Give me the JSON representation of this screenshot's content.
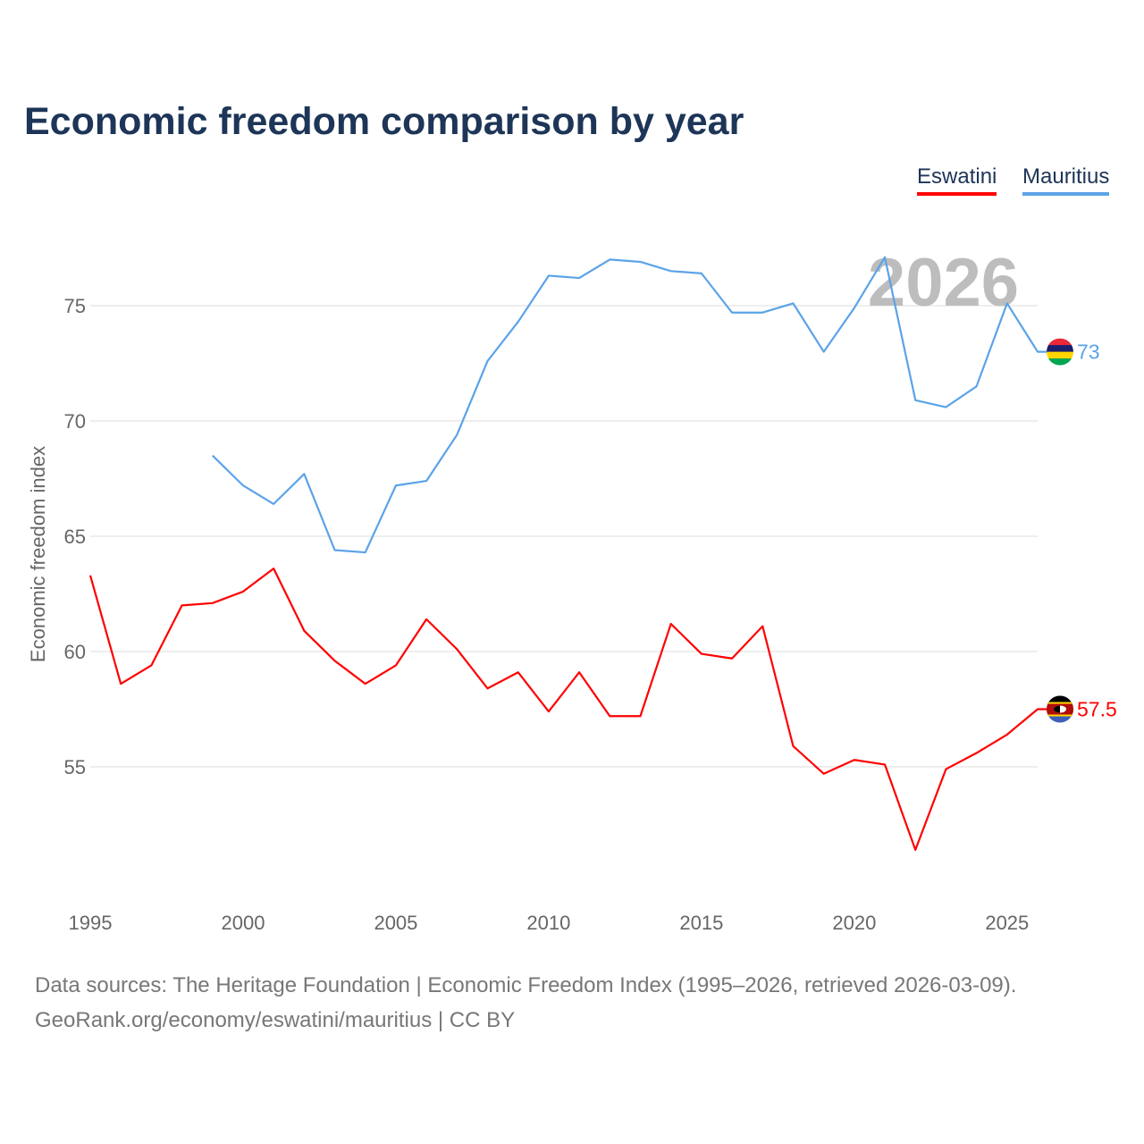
{
  "chart_data": {
    "type": "line",
    "title": "Economic freedom comparison by year",
    "ylabel": "Economic freedom index",
    "xlabel": "",
    "xlim": [
      1995,
      2026
    ],
    "ylim": [
      50,
      78.8
    ],
    "yticks": [
      "55",
      "60",
      "65",
      "70",
      "75"
    ],
    "xticks": [
      "1995",
      "2000",
      "2005",
      "2010",
      "2015",
      "2020",
      "2025"
    ],
    "grid": true,
    "legend_placement": "top-right",
    "watermark_year": "2026",
    "series": [
      {
        "name": "Eswatini",
        "color": "#ff0000",
        "end_label": "57.5",
        "x": [
          1995,
          1996,
          1997,
          1998,
          1999,
          2000,
          2001,
          2002,
          2003,
          2004,
          2005,
          2006,
          2007,
          2008,
          2009,
          2010,
          2011,
          2012,
          2013,
          2014,
          2015,
          2016,
          2017,
          2018,
          2019,
          2020,
          2021,
          2022,
          2023,
          2024,
          2025,
          2026
        ],
        "values": [
          63.3,
          58.6,
          59.4,
          62.0,
          62.1,
          62.6,
          63.6,
          60.9,
          59.6,
          58.6,
          59.4,
          61.4,
          60.1,
          58.4,
          59.1,
          57.4,
          59.1,
          57.2,
          57.2,
          61.2,
          59.9,
          59.7,
          61.1,
          55.9,
          54.7,
          55.3,
          55.1,
          51.4,
          54.9,
          55.6,
          56.4,
          57.5
        ]
      },
      {
        "name": "Mauritius",
        "color": "#5ba3e8",
        "end_label": "73",
        "x": [
          1999,
          2000,
          2001,
          2002,
          2003,
          2004,
          2005,
          2006,
          2007,
          2008,
          2009,
          2010,
          2011,
          2012,
          2013,
          2014,
          2015,
          2016,
          2017,
          2018,
          2019,
          2020,
          2021,
          2022,
          2023,
          2024,
          2025,
          2026
        ],
        "values": [
          68.5,
          67.2,
          66.4,
          67.7,
          64.4,
          64.3,
          67.2,
          67.4,
          69.4,
          72.6,
          74.3,
          76.3,
          76.2,
          77.0,
          76.9,
          76.5,
          76.4,
          74.7,
          74.7,
          75.1,
          73.0,
          74.9,
          77.1,
          70.9,
          70.6,
          71.5,
          75.1,
          73.0
        ]
      }
    ],
    "source_lines": [
      "Data sources: The Heritage Foundation | Economic Freedom Index (1995–2026, retrieved 2026-03-09).",
      "GeoRank.org/economy/eswatini/mauritius | CC BY"
    ]
  }
}
